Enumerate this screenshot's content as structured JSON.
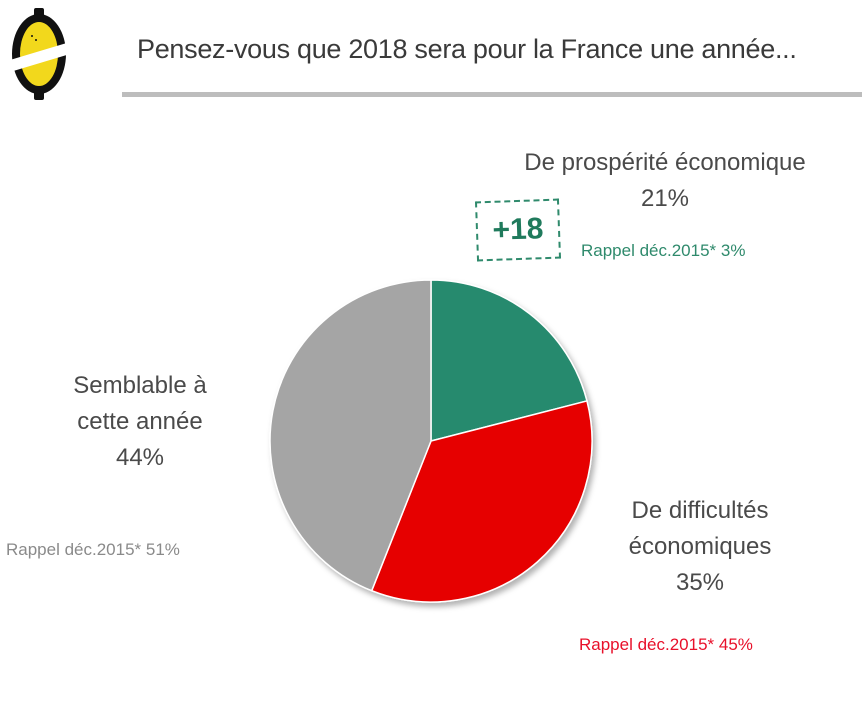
{
  "header": {
    "logo_icon": "lemon-logo-icon",
    "title": "Pensez-vous que 2018 sera pour la France une année..."
  },
  "colors": {
    "prosperity": "#258a6e",
    "difficulties": "#e60000",
    "similar": "#a5a5a5",
    "recall_green": "#2f8a6c",
    "recall_red": "#e8102a",
    "recall_grey": "#8a8a8a"
  },
  "chart_data": {
    "type": "pie",
    "title": "Pensez-vous que 2018 sera pour la France une année...",
    "start_angle": "12 o'clock",
    "direction": "clockwise",
    "slices": [
      {
        "label": "De prospérité économique",
        "value": 21,
        "display": "21%",
        "color": "#258a6e",
        "recall": "Rappel déc.2015* 3%",
        "recall_value": 3,
        "delta": "+18"
      },
      {
        "label": "De difficultés économiques",
        "value": 35,
        "display": "35%",
        "color": "#e60000",
        "recall": "Rappel déc.2015* 45%",
        "recall_value": 45
      },
      {
        "label": "Semblable à cette année",
        "value": 44,
        "display": "44%",
        "color": "#a5a5a5",
        "recall": "Rappel déc.2015* 51%",
        "recall_value": 51
      }
    ]
  },
  "labels": {
    "prosperity_line1": "De prospérité économique",
    "prosperity_pct": "21%",
    "prosperity_recall": "Rappel déc.2015* 3%",
    "prosperity_delta": "+18",
    "difficulties_line1": "De difficultés",
    "difficulties_line2": "économiques",
    "difficulties_pct": "35%",
    "difficulties_recall": "Rappel déc.2015* 45%",
    "similar_line1": "Semblable à",
    "similar_line2": "cette année",
    "similar_pct": "44%",
    "similar_recall": "Rappel déc.2015* 51%"
  }
}
